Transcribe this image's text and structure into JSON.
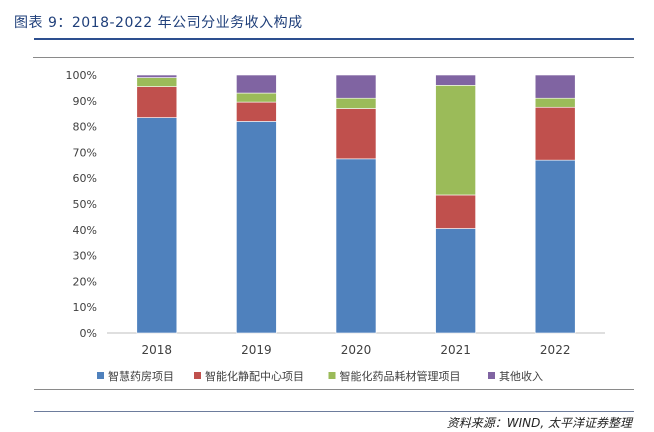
{
  "header": {
    "title": "图表 9：2018-2022 年公司分业务收入构成"
  },
  "footer": {
    "source": "资料来源：WIND, 太平洋证券整理"
  },
  "chart_data": {
    "type": "bar",
    "stacked": true,
    "categories": [
      "2018",
      "2019",
      "2020",
      "2021",
      "2022"
    ],
    "series": [
      {
        "name": "智慧药房项目",
        "color": "#4f81bd",
        "values": [
          83.5,
          82.0,
          67.5,
          40.5,
          67.0
        ]
      },
      {
        "name": "智能化静配中心项目",
        "color": "#c0504d",
        "values": [
          12.0,
          7.5,
          19.5,
          13.0,
          20.5
        ]
      },
      {
        "name": "智能化药品耗材管理项目",
        "color": "#9bbb59",
        "values": [
          3.5,
          3.5,
          4.0,
          42.5,
          3.5
        ]
      },
      {
        "name": "其他收入",
        "color": "#8064a2",
        "values": [
          1.0,
          7.0,
          9.0,
          4.0,
          9.0
        ]
      }
    ],
    "y_ticks": [
      "0%",
      "10%",
      "20%",
      "30%",
      "40%",
      "50%",
      "60%",
      "70%",
      "80%",
      "90%",
      "100%"
    ],
    "ylim": [
      0,
      100
    ],
    "grid": false,
    "legend_position": "bottom"
  }
}
